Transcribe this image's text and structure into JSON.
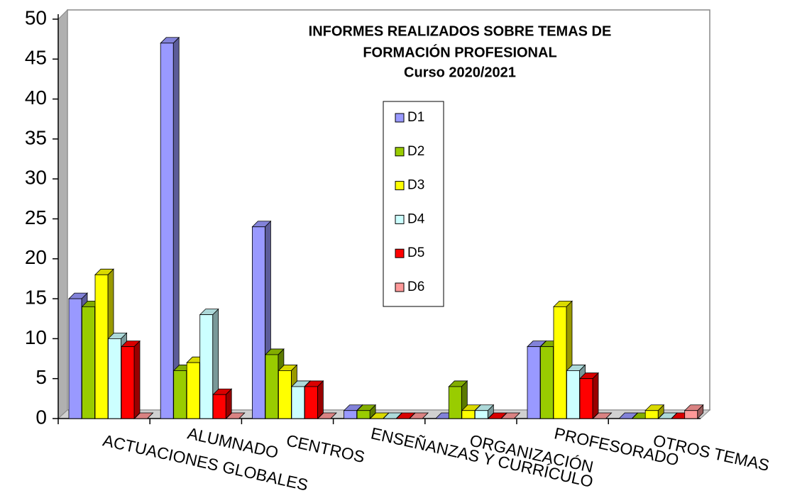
{
  "chart_data": {
    "type": "bar3d",
    "title": [
      "INFORMES REALIZADOS SOBRE TEMAS DE",
      "FORMACIÓN PROFESIONAL"
    ],
    "subtitle": "Curso 2020/2021",
    "categories": [
      "ACTUACIONES GLOBALES",
      "ALUMNADO",
      "CENTROS",
      "ENSEÑANZAS Y CURRÍCULO",
      "ORGANIZACIÓN",
      "PROFESORADO",
      "OTROS TEMAS"
    ],
    "series": [
      {
        "name": "D1",
        "color": "#9999ff",
        "values": [
          15,
          47,
          24,
          1,
          0,
          9,
          0
        ]
      },
      {
        "name": "D2",
        "color": "#99cc00",
        "values": [
          14,
          6,
          8,
          1,
          4,
          9,
          0
        ]
      },
      {
        "name": "D3",
        "color": "#ffff00",
        "values": [
          18,
          7,
          6,
          0,
          1,
          14,
          1
        ]
      },
      {
        "name": "D4",
        "color": "#ccffff",
        "values": [
          10,
          13,
          4,
          0,
          1,
          6,
          0
        ]
      },
      {
        "name": "D5",
        "color": "#ff0000",
        "values": [
          9,
          3,
          4,
          0,
          0,
          5,
          0
        ]
      },
      {
        "name": "D6",
        "color": "#ff9999",
        "values": [
          0,
          0,
          0,
          0,
          0,
          0,
          1
        ]
      }
    ],
    "ylim": [
      0,
      50
    ],
    "yticks": [
      0,
      5,
      10,
      15,
      20,
      25,
      30,
      35,
      40,
      45,
      50
    ]
  }
}
